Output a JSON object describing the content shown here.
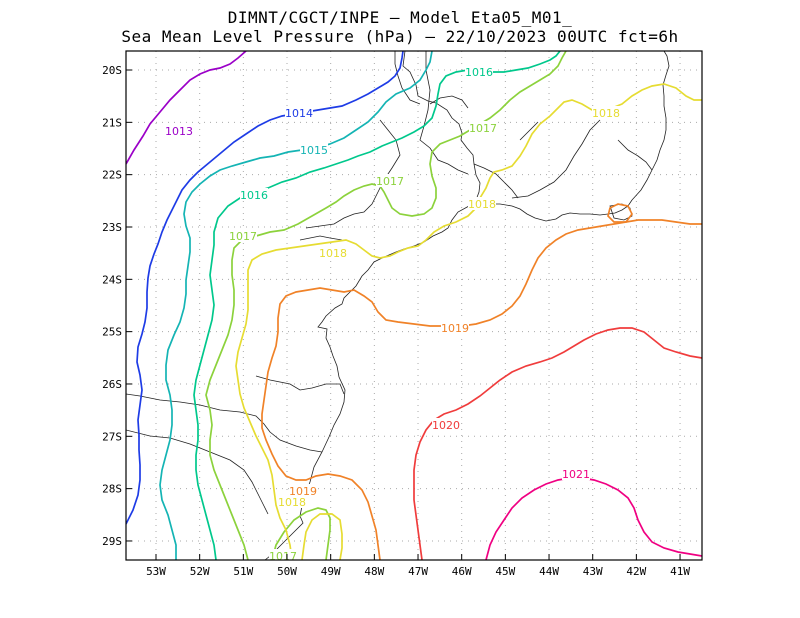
{
  "title": {
    "line1": "DIMNT/CGCT/INPE –  Model Eta05_M01_",
    "line2": "Sea Mean Level Pressure (hPa) – 22/10/2023 00UTC fct=6h"
  },
  "axes": {
    "lat_labels": [
      "20S",
      "21S",
      "22S",
      "23S",
      "24S",
      "25S",
      "26S",
      "27S",
      "28S",
      "29S"
    ],
    "lon_labels": [
      "53W",
      "52W",
      "51W",
      "50W",
      "49W",
      "48W",
      "47W",
      "46W",
      "45W",
      "44W",
      "43W",
      "42W",
      "41W"
    ]
  },
  "colors": {
    "c1013": "#9b00c8",
    "c1014": "#1e3ce6",
    "c1015": "#14b4b4",
    "c1016": "#00c88c",
    "c1017": "#8cd23c",
    "c1018": "#e6dc32",
    "c1019": "#f08228",
    "c1020": "#f03c3c",
    "c1021": "#f00082"
  },
  "contour_labels": [
    {
      "key": "l1013",
      "text": "1013",
      "color_key": "c1013"
    },
    {
      "key": "l1014",
      "text": "1014",
      "color_key": "c1014"
    },
    {
      "key": "l1015",
      "text": "1015",
      "color_key": "c1015"
    },
    {
      "key": "l1016a",
      "text": "1016",
      "color_key": "c1016"
    },
    {
      "key": "l1016b",
      "text": "1016",
      "color_key": "c1016"
    },
    {
      "key": "l1017a",
      "text": "1017",
      "color_key": "c1017"
    },
    {
      "key": "l1017b",
      "text": "1017",
      "color_key": "c1017"
    },
    {
      "key": "l1017c",
      "text": "1017",
      "color_key": "c1017"
    },
    {
      "key": "l1017d",
      "text": "1017",
      "color_key": "c1017"
    },
    {
      "key": "l1018a",
      "text": "1018",
      "color_key": "c1018"
    },
    {
      "key": "l1018b",
      "text": "1018",
      "color_key": "c1018"
    },
    {
      "key": "l1018c",
      "text": "1018",
      "color_key": "c1018"
    },
    {
      "key": "l1018d",
      "text": "1018",
      "color_key": "c1018"
    },
    {
      "key": "l1019a",
      "text": "1019",
      "color_key": "c1019"
    },
    {
      "key": "l1019b",
      "text": "1019",
      "color_key": "c1019"
    },
    {
      "key": "l1020",
      "text": "1020",
      "color_key": "c1020"
    },
    {
      "key": "l1021",
      "text": "1021",
      "color_key": "c1021"
    }
  ]
}
